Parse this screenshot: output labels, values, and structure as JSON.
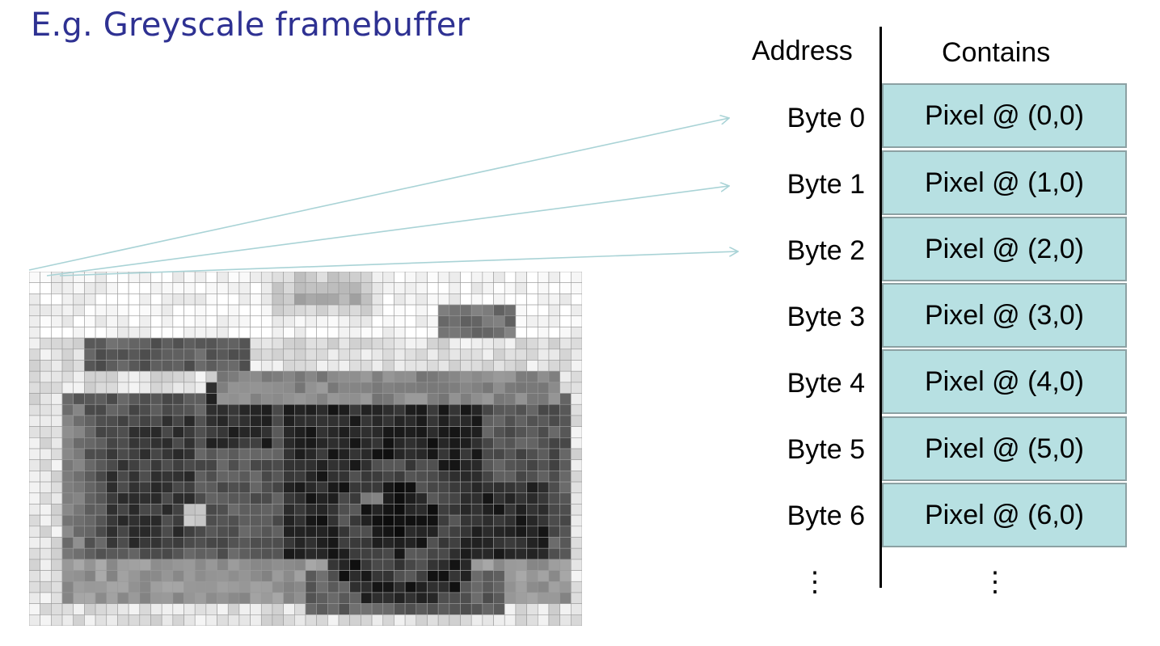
{
  "title": "E.g. Greyscale framebuffer",
  "table": {
    "address_header": "Address",
    "contains_header": "Contains",
    "rows": [
      {
        "address": "Byte 0",
        "contents": "Pixel @ (0,0)"
      },
      {
        "address": "Byte 1",
        "contents": "Pixel @ (1,0)"
      },
      {
        "address": "Byte 2",
        "contents": "Pixel @ (2,0)"
      },
      {
        "address": "Byte 3",
        "contents": "Pixel @ (3,0)"
      },
      {
        "address": "Byte 4",
        "contents": "Pixel @ (4,0)"
      },
      {
        "address": "Byte 5",
        "contents": "Pixel @ (5,0)"
      },
      {
        "address": "Byte 6",
        "contents": "Pixel @ (6,0)"
      }
    ],
    "ellipsis": "⋮"
  },
  "colors": {
    "title": "#2E3192",
    "cell_fill": "#B7E0E2",
    "cell_border": "#8CA1A3",
    "arrow": "#A9D3D6"
  },
  "image": {
    "icon": "pixelated-camera-icon"
  }
}
